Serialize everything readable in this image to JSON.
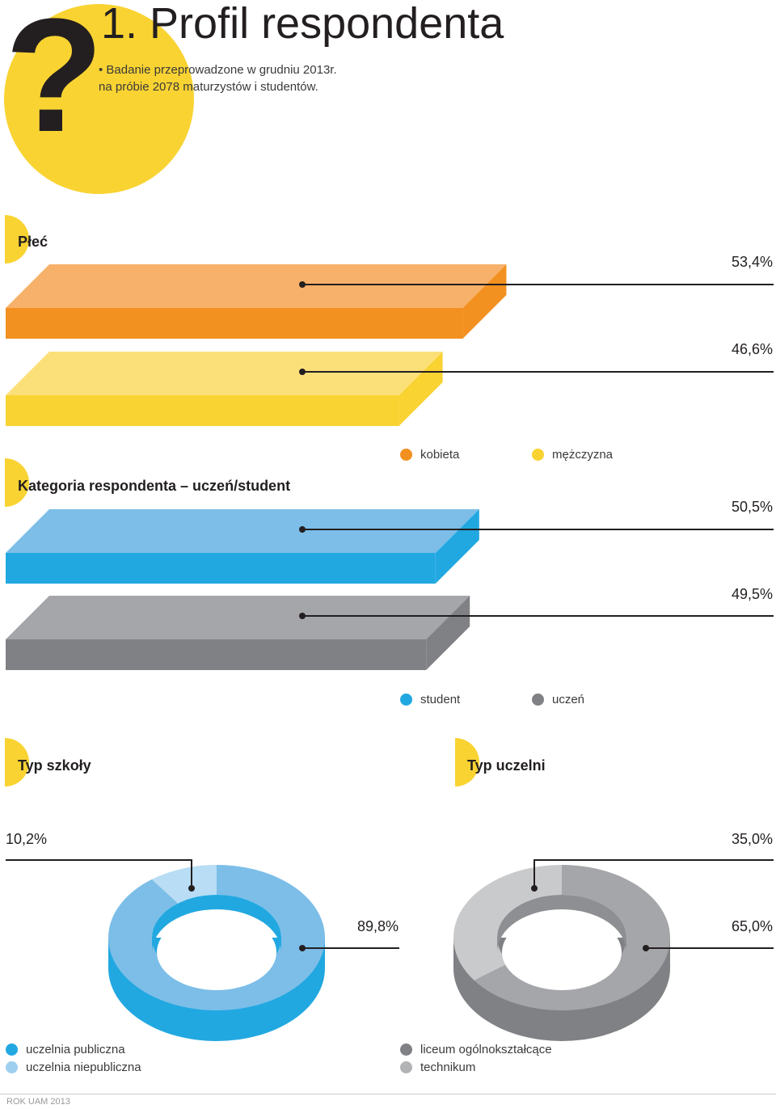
{
  "header": {
    "question_mark": "?",
    "title": "1. Profil respondenta",
    "intro_line1": "• Badanie przeprowadzone w grudniu 2013r.",
    "intro_line2": "na próbie 2078 maturzystów i studentów."
  },
  "colors": {
    "yellow": "#F9D332",
    "orange_front": "#F39120",
    "orange_top": "#F8B16A",
    "yellow_front": "#F9D332",
    "yellow_top": "#FBE07A",
    "blue_front": "#22A8E1",
    "blue_top": "#7CBEE8",
    "gray_front": "#808184",
    "gray_top": "#A5A6A9",
    "dark": "#231F20"
  },
  "chart_data": [
    {
      "type": "bar",
      "title": "Płeć",
      "categories": [
        "kobieta",
        "mężczyzna"
      ],
      "values": [
        53.4,
        46.6
      ],
      "value_labels": [
        "53,4%",
        "46,6%"
      ],
      "legend": [
        "kobieta",
        "mężczyzna"
      ],
      "legend_placement": "bottom-right",
      "grid": false
    },
    {
      "type": "bar",
      "title": "Kategoria respondenta – uczeń/student",
      "categories": [
        "student",
        "uczeń"
      ],
      "values": [
        50.5,
        49.5
      ],
      "value_labels": [
        "50,5%",
        "49,5%"
      ],
      "legend": [
        "student",
        "uczeń"
      ],
      "legend_placement": "bottom-right",
      "grid": false
    },
    {
      "type": "pie",
      "title": "Typ szkoły",
      "categories": [
        "uczelnia publiczna",
        "uczelnia niepubliczna"
      ],
      "values": [
        89.8,
        10.2
      ],
      "value_labels": [
        "89,8%",
        "10,2%"
      ],
      "legend": [
        "uczelnia publiczna",
        "uczelnia niepubliczna"
      ],
      "legend_placement": "bottom-left"
    },
    {
      "type": "pie",
      "title": "Typ uczelni",
      "categories": [
        "liceum ogólnokształcące",
        "technikum"
      ],
      "values": [
        65.0,
        35.0
      ],
      "value_labels": [
        "65,0%",
        "35,0%"
      ],
      "legend": [
        "liceum ogólnokształcące",
        "technikum"
      ],
      "legend_placement": "bottom-left"
    }
  ],
  "footer": "ROK UAM 2013"
}
